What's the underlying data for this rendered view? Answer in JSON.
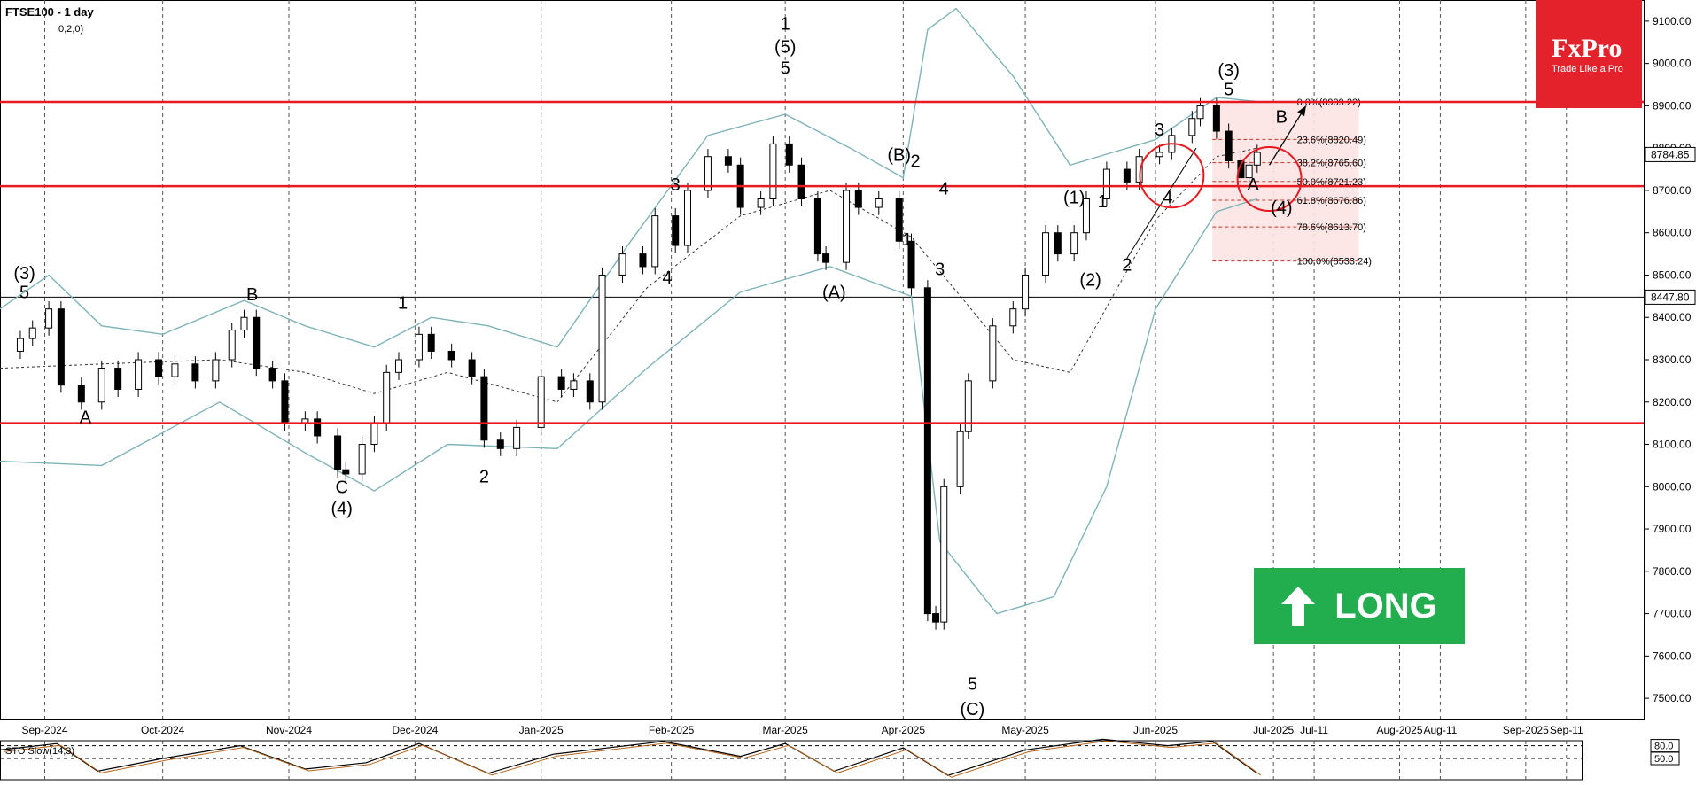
{
  "header": {
    "symbol_label": "FTSE100 - 1 day",
    "sub_label": "0,2,0)"
  },
  "logo": {
    "name": "FxPro",
    "tagline": "Trade Like a Pro"
  },
  "signal": {
    "label": "LONG",
    "color": "#22ad4e"
  },
  "colors": {
    "level_line": "#e8191f",
    "band": "#7fb3b8",
    "candle_up": "#ffffff",
    "candle_down": "#000000",
    "fib_zone": "#fde3e3"
  },
  "chart_data": {
    "type": "candlestick",
    "title": "FTSE100 - 1 day",
    "ylim": [
      7450,
      9150
    ],
    "y_ticks": [
      7500,
      7600,
      7700,
      7800,
      7900,
      8000,
      8100,
      8200,
      8300,
      8400,
      8500,
      8600,
      8700,
      8800,
      8900,
      9000,
      9100
    ],
    "y_tick_labels": [
      "7500.00",
      "7600.00",
      "7700.00",
      "7800.00",
      "7900.00",
      "8000.00",
      "8100.00",
      "8200.00",
      "8300.00",
      "8400.00",
      "8500.00",
      "8600.00",
      "8700.00",
      "8800.00",
      "8900.00",
      "9000.00",
      "9100.00"
    ],
    "x_range": [
      "2024-08-22",
      "2025-09-30"
    ],
    "x_ticks": [
      {
        "date": "2024-09-02",
        "label": "Sep-2024"
      },
      {
        "date": "2024-10-01",
        "label": "Oct-2024"
      },
      {
        "date": "2024-11-01",
        "label": "Nov-2024"
      },
      {
        "date": "2024-12-02",
        "label": "Dec-2024"
      },
      {
        "date": "2025-01-02",
        "label": "Jan-2025"
      },
      {
        "date": "2025-02-03",
        "label": "Feb-2025"
      },
      {
        "date": "2025-03-03",
        "label": "Mar-2025"
      },
      {
        "date": "2025-04-01",
        "label": "Apr-2025"
      },
      {
        "date": "2025-05-01",
        "label": "May-2025"
      },
      {
        "date": "2025-06-02",
        "label": "Jun-2025"
      },
      {
        "date": "2025-07-01",
        "label": "Jul-2025"
      },
      {
        "date": "2025-07-11",
        "label": "Jul-11"
      },
      {
        "date": "2025-08-01",
        "label": "Aug-2025"
      },
      {
        "date": "2025-08-11",
        "label": "Aug-11"
      },
      {
        "date": "2025-09-01",
        "label": "Sep-2025"
      },
      {
        "date": "2025-09-11",
        "label": "Sep-11"
      }
    ],
    "grid": true,
    "horizontal_levels": [
      8909.22,
      8710,
      8150
    ],
    "reference_line": 8447.8,
    "price_labels": [
      {
        "value": 8784.85,
        "label": "8784.85"
      },
      {
        "value": 8447.8,
        "label": "8447.80"
      }
    ],
    "fibonacci": [
      {
        "value": 8909.22,
        "label": "0.0%(8909.22)"
      },
      {
        "value": 8820.49,
        "label": "23.6%(8820.49)"
      },
      {
        "value": 8765.6,
        "label": "38.2%(8765.60)"
      },
      {
        "value": 8721.23,
        "label": "50.0%(8721.23)"
      },
      {
        "value": 8676.86,
        "label": "61.8%(8676.86)"
      },
      {
        "value": 8613.7,
        "label": "78.6%(8613.70)"
      },
      {
        "value": 8533.24,
        "label": "100.0%(8533.24)"
      }
    ],
    "fib_zone_range": [
      "2025-06-16",
      "2025-07-22"
    ],
    "closes": [
      {
        "x": "2024-08-22",
        "y": 8320
      },
      {
        "x": "2024-08-27",
        "y": 8350
      },
      {
        "x": "2024-08-30",
        "y": 8375
      },
      {
        "x": "2024-09-03",
        "y": 8420
      },
      {
        "x": "2024-09-06",
        "y": 8240
      },
      {
        "x": "2024-09-11",
        "y": 8200
      },
      {
        "x": "2024-09-16",
        "y": 8280
      },
      {
        "x": "2024-09-20",
        "y": 8230
      },
      {
        "x": "2024-09-25",
        "y": 8300
      },
      {
        "x": "2024-09-30",
        "y": 8260
      },
      {
        "x": "2024-10-04",
        "y": 8290
      },
      {
        "x": "2024-10-09",
        "y": 8250
      },
      {
        "x": "2024-10-14",
        "y": 8300
      },
      {
        "x": "2024-10-18",
        "y": 8370
      },
      {
        "x": "2024-10-21",
        "y": 8400
      },
      {
        "x": "2024-10-24",
        "y": 8280
      },
      {
        "x": "2024-10-28",
        "y": 8250
      },
      {
        "x": "2024-10-31",
        "y": 8150
      },
      {
        "x": "2024-11-05",
        "y": 8160
      },
      {
        "x": "2024-11-08",
        "y": 8120
      },
      {
        "x": "2024-11-13",
        "y": 8040
      },
      {
        "x": "2024-11-15",
        "y": 8030
      },
      {
        "x": "2024-11-19",
        "y": 8100
      },
      {
        "x": "2024-11-22",
        "y": 8150
      },
      {
        "x": "2024-11-25",
        "y": 8270
      },
      {
        "x": "2024-11-28",
        "y": 8300
      },
      {
        "x": "2024-12-03",
        "y": 8360
      },
      {
        "x": "2024-12-06",
        "y": 8320
      },
      {
        "x": "2024-12-11",
        "y": 8300
      },
      {
        "x": "2024-12-16",
        "y": 8260
      },
      {
        "x": "2024-12-19",
        "y": 8110
      },
      {
        "x": "2024-12-23",
        "y": 8090
      },
      {
        "x": "2024-12-27",
        "y": 8140
      },
      {
        "x": "2025-01-02",
        "y": 8260
      },
      {
        "x": "2025-01-07",
        "y": 8230
      },
      {
        "x": "2025-01-10",
        "y": 8250
      },
      {
        "x": "2025-01-14",
        "y": 8200
      },
      {
        "x": "2025-01-17",
        "y": 8500
      },
      {
        "x": "2025-01-22",
        "y": 8550
      },
      {
        "x": "2025-01-27",
        "y": 8520
      },
      {
        "x": "2025-01-30",
        "y": 8640
      },
      {
        "x": "2025-02-04",
        "y": 8570
      },
      {
        "x": "2025-02-07",
        "y": 8700
      },
      {
        "x": "2025-02-12",
        "y": 8780
      },
      {
        "x": "2025-02-17",
        "y": 8760
      },
      {
        "x": "2025-02-20",
        "y": 8660
      },
      {
        "x": "2025-02-25",
        "y": 8680
      },
      {
        "x": "2025-02-28",
        "y": 8810
      },
      {
        "x": "2025-03-04",
        "y": 8760
      },
      {
        "x": "2025-03-07",
        "y": 8680
      },
      {
        "x": "2025-03-11",
        "y": 8550
      },
      {
        "x": "2025-03-13",
        "y": 8530
      },
      {
        "x": "2025-03-18",
        "y": 8700
      },
      {
        "x": "2025-03-21",
        "y": 8660
      },
      {
        "x": "2025-03-26",
        "y": 8680
      },
      {
        "x": "2025-03-31",
        "y": 8580
      },
      {
        "x": "2025-04-03",
        "y": 8470
      },
      {
        "x": "2025-04-07",
        "y": 7700
      },
      {
        "x": "2025-04-09",
        "y": 7680
      },
      {
        "x": "2025-04-11",
        "y": 8000
      },
      {
        "x": "2025-04-15",
        "y": 8130
      },
      {
        "x": "2025-04-17",
        "y": 8250
      },
      {
        "x": "2025-04-23",
        "y": 8380
      },
      {
        "x": "2025-04-28",
        "y": 8420
      },
      {
        "x": "2025-05-01",
        "y": 8500
      },
      {
        "x": "2025-05-06",
        "y": 8600
      },
      {
        "x": "2025-05-09",
        "y": 8550
      },
      {
        "x": "2025-05-13",
        "y": 8600
      },
      {
        "x": "2025-05-16",
        "y": 8680
      },
      {
        "x": "2025-05-21",
        "y": 8750
      },
      {
        "x": "2025-05-26",
        "y": 8720
      },
      {
        "x": "2025-05-29",
        "y": 8780
      },
      {
        "x": "2025-06-03",
        "y": 8790
      },
      {
        "x": "2025-06-06",
        "y": 8830
      },
      {
        "x": "2025-06-11",
        "y": 8870
      },
      {
        "x": "2025-06-13",
        "y": 8900
      },
      {
        "x": "2025-06-17",
        "y": 8840
      },
      {
        "x": "2025-06-20",
        "y": 8770
      },
      {
        "x": "2025-06-23",
        "y": 8730
      },
      {
        "x": "2025-06-25",
        "y": 8760
      },
      {
        "x": "2025-06-27",
        "y": 8790
      }
    ],
    "bands": {
      "upper": [
        {
          "x": "2024-08-22",
          "y": 8420
        },
        {
          "x": "2024-09-03",
          "y": 8500
        },
        {
          "x": "2024-09-16",
          "y": 8380
        },
        {
          "x": "2024-10-01",
          "y": 8360
        },
        {
          "x": "2024-10-21",
          "y": 8440
        },
        {
          "x": "2024-11-05",
          "y": 8380
        },
        {
          "x": "2024-11-22",
          "y": 8330
        },
        {
          "x": "2024-12-06",
          "y": 8400
        },
        {
          "x": "2024-12-20",
          "y": 8380
        },
        {
          "x": "2025-01-06",
          "y": 8330
        },
        {
          "x": "2025-01-24",
          "y": 8580
        },
        {
          "x": "2025-02-12",
          "y": 8830
        },
        {
          "x": "2025-03-03",
          "y": 8880
        },
        {
          "x": "2025-03-19",
          "y": 8800
        },
        {
          "x": "2025-04-01",
          "y": 8730
        },
        {
          "x": "2025-04-07",
          "y": 9080
        },
        {
          "x": "2025-04-14",
          "y": 9130
        },
        {
          "x": "2025-04-28",
          "y": 8970
        },
        {
          "x": "2025-05-12",
          "y": 8760
        },
        {
          "x": "2025-06-02",
          "y": 8820
        },
        {
          "x": "2025-06-17",
          "y": 8920
        },
        {
          "x": "2025-06-27",
          "y": 8910
        }
      ],
      "middle": [
        {
          "x": "2024-08-22",
          "y": 8280
        },
        {
          "x": "2024-09-16",
          "y": 8290
        },
        {
          "x": "2024-10-15",
          "y": 8300
        },
        {
          "x": "2024-11-05",
          "y": 8270
        },
        {
          "x": "2024-11-22",
          "y": 8220
        },
        {
          "x": "2024-12-10",
          "y": 8270
        },
        {
          "x": "2025-01-06",
          "y": 8200
        },
        {
          "x": "2025-01-28",
          "y": 8470
        },
        {
          "x": "2025-02-20",
          "y": 8640
        },
        {
          "x": "2025-03-14",
          "y": 8700
        },
        {
          "x": "2025-04-03",
          "y": 8590
        },
        {
          "x": "2025-04-28",
          "y": 8300
        },
        {
          "x": "2025-05-12",
          "y": 8270
        },
        {
          "x": "2025-06-02",
          "y": 8630
        },
        {
          "x": "2025-06-17",
          "y": 8780
        },
        {
          "x": "2025-06-27",
          "y": 8800
        }
      ],
      "lower": [
        {
          "x": "2024-08-22",
          "y": 8060
        },
        {
          "x": "2024-09-16",
          "y": 8050
        },
        {
          "x": "2024-10-15",
          "y": 8200
        },
        {
          "x": "2024-11-05",
          "y": 8080
        },
        {
          "x": "2024-11-22",
          "y": 7990
        },
        {
          "x": "2024-12-10",
          "y": 8100
        },
        {
          "x": "2025-01-06",
          "y": 8090
        },
        {
          "x": "2025-01-28",
          "y": 8280
        },
        {
          "x": "2025-02-20",
          "y": 8460
        },
        {
          "x": "2025-03-14",
          "y": 8520
        },
        {
          "x": "2025-04-03",
          "y": 8450
        },
        {
          "x": "2025-04-10",
          "y": 7870
        },
        {
          "x": "2025-04-24",
          "y": 7700
        },
        {
          "x": "2025-05-08",
          "y": 7740
        },
        {
          "x": "2025-05-21",
          "y": 8000
        },
        {
          "x": "2025-06-02",
          "y": 8420
        },
        {
          "x": "2025-06-17",
          "y": 8650
        },
        {
          "x": "2025-06-27",
          "y": 8680
        }
      ]
    },
    "annotations": [
      {
        "text": "(3)",
        "x": "2024-08-28",
        "y": 8490
      },
      {
        "text": "5",
        "x": "2024-08-28",
        "y": 8445
      },
      {
        "text": "A",
        "x": "2024-09-12",
        "y": 8150
      },
      {
        "text": "B",
        "x": "2024-10-23",
        "y": 8440
      },
      {
        "text": "C",
        "x": "2024-11-14",
        "y": 7985
      },
      {
        "text": "(4)",
        "x": "2024-11-14",
        "y": 7935
      },
      {
        "text": "1",
        "x": "2024-11-29",
        "y": 8420
      },
      {
        "text": "2",
        "x": "2024-12-19",
        "y": 8010
      },
      {
        "text": "3",
        "x": "2025-02-04",
        "y": 8700
      },
      {
        "text": "4",
        "x": "2025-02-02",
        "y": 8480
      },
      {
        "text": "1",
        "x": "2025-03-03",
        "y": 9080
      },
      {
        "text": "(5)",
        "x": "2025-03-03",
        "y": 9025
      },
      {
        "text": "5",
        "x": "2025-03-03",
        "y": 8975
      },
      {
        "text": "(A)",
        "x": "2025-03-15",
        "y": 8445
      },
      {
        "text": "(B)",
        "x": "2025-03-31",
        "y": 8770
      },
      {
        "text": "2",
        "x": "2025-04-04",
        "y": 8755
      },
      {
        "text": "1",
        "x": "2025-04-02",
        "y": 8570
      },
      {
        "text": "4",
        "x": "2025-04-11",
        "y": 8690
      },
      {
        "text": "3",
        "x": "2025-04-10",
        "y": 8500
      },
      {
        "text": "5",
        "x": "2025-04-18",
        "y": 7520
      },
      {
        "text": "(C)",
        "x": "2025-04-18",
        "y": 7460
      },
      {
        "text": "(1)",
        "x": "2025-05-13",
        "y": 8670
      },
      {
        "text": "1",
        "x": "2025-05-20",
        "y": 8660
      },
      {
        "text": "(2)",
        "x": "2025-05-17",
        "y": 8475
      },
      {
        "text": "2",
        "x": "2025-05-26",
        "y": 8510
      },
      {
        "text": "3",
        "x": "2025-06-03",
        "y": 8830
      },
      {
        "text": "4",
        "x": "2025-06-05",
        "y": 8670
      },
      {
        "text": "(3)",
        "x": "2025-06-20",
        "y": 8970
      },
      {
        "text": "5",
        "x": "2025-06-20",
        "y": 8925
      },
      {
        "text": "B",
        "x": "2025-07-03",
        "y": 8860
      },
      {
        "text": "A",
        "x": "2025-06-26",
        "y": 8700
      },
      {
        "text": "(4)",
        "x": "2025-07-03",
        "y": 8645
      }
    ],
    "circles": [
      {
        "x": "2025-06-06",
        "y": 8735
      },
      {
        "x": "2025-06-30",
        "y": 8727
      }
    ],
    "arrow": {
      "from": {
        "x": "2025-06-30",
        "y": 8760
      },
      "to": {
        "x": "2025-07-09",
        "y": 8900
      }
    },
    "trend_line": {
      "from": {
        "x": "2025-05-26",
        "y": 8540
      },
      "to": {
        "x": "2025-06-12",
        "y": 8800
      }
    },
    "oscillator": {
      "title": "STO Slow(14,3)",
      "levels": [
        80.0,
        50.0
      ],
      "level_labels": [
        "80.0",
        "50.0"
      ],
      "values": [
        {
          "x": "2024-08-22",
          "y": 70
        },
        {
          "x": "2024-09-05",
          "y": 85
        },
        {
          "x": "2024-09-15",
          "y": 20
        },
        {
          "x": "2024-10-01",
          "y": 50
        },
        {
          "x": "2024-10-20",
          "y": 80
        },
        {
          "x": "2024-11-05",
          "y": 25
        },
        {
          "x": "2024-11-20",
          "y": 40
        },
        {
          "x": "2024-12-03",
          "y": 85
        },
        {
          "x": "2024-12-20",
          "y": 15
        },
        {
          "x": "2025-01-05",
          "y": 60
        },
        {
          "x": "2025-02-01",
          "y": 90
        },
        {
          "x": "2025-02-20",
          "y": 55
        },
        {
          "x": "2025-03-03",
          "y": 85
        },
        {
          "x": "2025-03-15",
          "y": 20
        },
        {
          "x": "2025-04-01",
          "y": 75
        },
        {
          "x": "2025-04-12",
          "y": 10
        },
        {
          "x": "2025-05-01",
          "y": 70
        },
        {
          "x": "2025-05-20",
          "y": 95
        },
        {
          "x": "2025-06-05",
          "y": 80
        },
        {
          "x": "2025-06-16",
          "y": 90
        },
        {
          "x": "2025-06-27",
          "y": 15
        }
      ]
    }
  }
}
